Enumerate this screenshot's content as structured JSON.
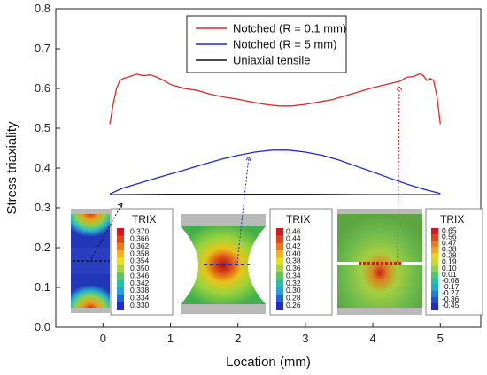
{
  "chart_data": {
    "type": "line",
    "xlabel": "Location (mm)",
    "ylabel": "Stress triaxiality",
    "xlim": [
      -0.7,
      5.6
    ],
    "ylim": [
      0.0,
      0.8
    ],
    "xticks": [
      "0",
      "1",
      "2",
      "3",
      "4",
      "5"
    ],
    "yticks": [
      "0.0",
      "0.1",
      "0.2",
      "0.3",
      "0.4",
      "0.5",
      "0.6",
      "0.7",
      "0.8"
    ],
    "legend_position": "top-center",
    "series": [
      {
        "name": "Notched (R = 0.1 mm)",
        "color": "#e32626",
        "points": [
          [
            0.1,
            0.51
          ],
          [
            0.15,
            0.56
          ],
          [
            0.2,
            0.6
          ],
          [
            0.25,
            0.62
          ],
          [
            0.3,
            0.625
          ],
          [
            0.4,
            0.63
          ],
          [
            0.5,
            0.636
          ],
          [
            0.6,
            0.632
          ],
          [
            0.7,
            0.634
          ],
          [
            0.8,
            0.628
          ],
          [
            0.9,
            0.62
          ],
          [
            1.0,
            0.61
          ],
          [
            1.2,
            0.6
          ],
          [
            1.4,
            0.595
          ],
          [
            1.6,
            0.585
          ],
          [
            1.8,
            0.578
          ],
          [
            2.0,
            0.573
          ],
          [
            2.2,
            0.566
          ],
          [
            2.4,
            0.56
          ],
          [
            2.6,
            0.556
          ],
          [
            2.8,
            0.556
          ],
          [
            3.0,
            0.56
          ],
          [
            3.2,
            0.566
          ],
          [
            3.4,
            0.572
          ],
          [
            3.6,
            0.582
          ],
          [
            3.8,
            0.592
          ],
          [
            4.0,
            0.602
          ],
          [
            4.2,
            0.61
          ],
          [
            4.4,
            0.618
          ],
          [
            4.5,
            0.628
          ],
          [
            4.6,
            0.63
          ],
          [
            4.7,
            0.637
          ],
          [
            4.75,
            0.632
          ],
          [
            4.8,
            0.62
          ],
          [
            4.85,
            0.625
          ],
          [
            4.9,
            0.62
          ],
          [
            4.95,
            0.58
          ],
          [
            5.0,
            0.51
          ]
        ]
      },
      {
        "name": "Notched (R = 5 mm)",
        "color": "#1f2bd1",
        "points": [
          [
            0.1,
            0.335
          ],
          [
            0.3,
            0.35
          ],
          [
            0.5,
            0.36
          ],
          [
            0.75,
            0.373
          ],
          [
            1.0,
            0.385
          ],
          [
            1.25,
            0.397
          ],
          [
            1.5,
            0.41
          ],
          [
            1.75,
            0.422
          ],
          [
            2.0,
            0.432
          ],
          [
            2.25,
            0.44
          ],
          [
            2.5,
            0.445
          ],
          [
            2.75,
            0.445
          ],
          [
            3.0,
            0.44
          ],
          [
            3.25,
            0.432
          ],
          [
            3.5,
            0.42
          ],
          [
            3.75,
            0.405
          ],
          [
            4.0,
            0.39
          ],
          [
            4.25,
            0.375
          ],
          [
            4.5,
            0.36
          ],
          [
            4.75,
            0.347
          ],
          [
            5.0,
            0.336
          ]
        ]
      },
      {
        "name": "Uniaxial tensile",
        "color": "#111111",
        "points": [
          [
            0.1,
            0.333
          ],
          [
            1.0,
            0.334
          ],
          [
            2.0,
            0.334
          ],
          [
            3.0,
            0.334
          ],
          [
            4.0,
            0.333
          ],
          [
            5.0,
            0.333
          ]
        ]
      }
    ],
    "insets": [
      {
        "title": "TRIX",
        "labels": [
          "0.370",
          "0.366",
          "0.362",
          "0.358",
          "0.354",
          "0.350",
          "0.346",
          "0.342",
          "0.338",
          "0.334",
          "0.330"
        ]
      },
      {
        "title": "TRIX",
        "labels": [
          "0.46",
          "0.44",
          "0.42",
          "0.40",
          "0.38",
          "0.36",
          "0.34",
          "0.32",
          "0.30",
          "0.28",
          "0.26"
        ]
      },
      {
        "title": "TRIX",
        "labels": [
          "0.65",
          "0.56",
          "0.47",
          "0.38",
          "0.28",
          "0.19",
          "0.10",
          "0.01",
          "-0.08",
          "-0.17",
          "-0.27",
          "-0.36",
          "-0.45"
        ]
      }
    ]
  }
}
